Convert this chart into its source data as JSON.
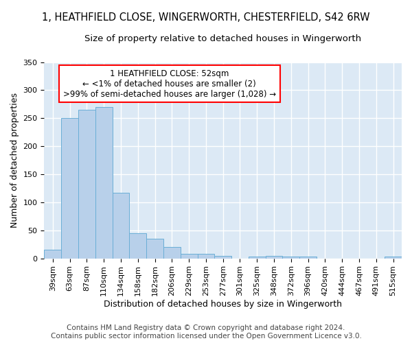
{
  "title1": "1, HEATHFIELD CLOSE, WINGERWORTH, CHESTERFIELD, S42 6RW",
  "title2": "Size of property relative to detached houses in Wingerworth",
  "xlabel": "Distribution of detached houses by size in Wingerworth",
  "ylabel": "Number of detached properties",
  "categories": [
    "39sqm",
    "63sqm",
    "87sqm",
    "110sqm",
    "134sqm",
    "158sqm",
    "182sqm",
    "206sqm",
    "229sqm",
    "253sqm",
    "277sqm",
    "301sqm",
    "325sqm",
    "348sqm",
    "372sqm",
    "396sqm",
    "420sqm",
    "444sqm",
    "467sqm",
    "491sqm",
    "515sqm"
  ],
  "values": [
    16,
    250,
    265,
    270,
    117,
    45,
    35,
    20,
    8,
    8,
    4,
    0,
    3,
    4,
    3,
    3,
    0,
    0,
    0,
    0,
    3
  ],
  "bar_color": "#b8d0ea",
  "bar_edge_color": "#6aaed6",
  "annotation_box_text": "1 HEATHFIELD CLOSE: 52sqm\n← <1% of detached houses are smaller (2)\n>99% of semi-detached houses are larger (1,028) →",
  "background_color": "#dce9f5",
  "grid_color": "#ffffff",
  "ylim": [
    0,
    350
  ],
  "yticks": [
    0,
    50,
    100,
    150,
    200,
    250,
    300,
    350
  ],
  "footer1": "Contains HM Land Registry data © Crown copyright and database right 2024.",
  "footer2": "Contains public sector information licensed under the Open Government Licence v3.0.",
  "title_fontsize": 10.5,
  "subtitle_fontsize": 9.5,
  "axis_label_fontsize": 9,
  "tick_fontsize": 8,
  "footer_fontsize": 7.5,
  "annotation_fontsize": 8.5
}
